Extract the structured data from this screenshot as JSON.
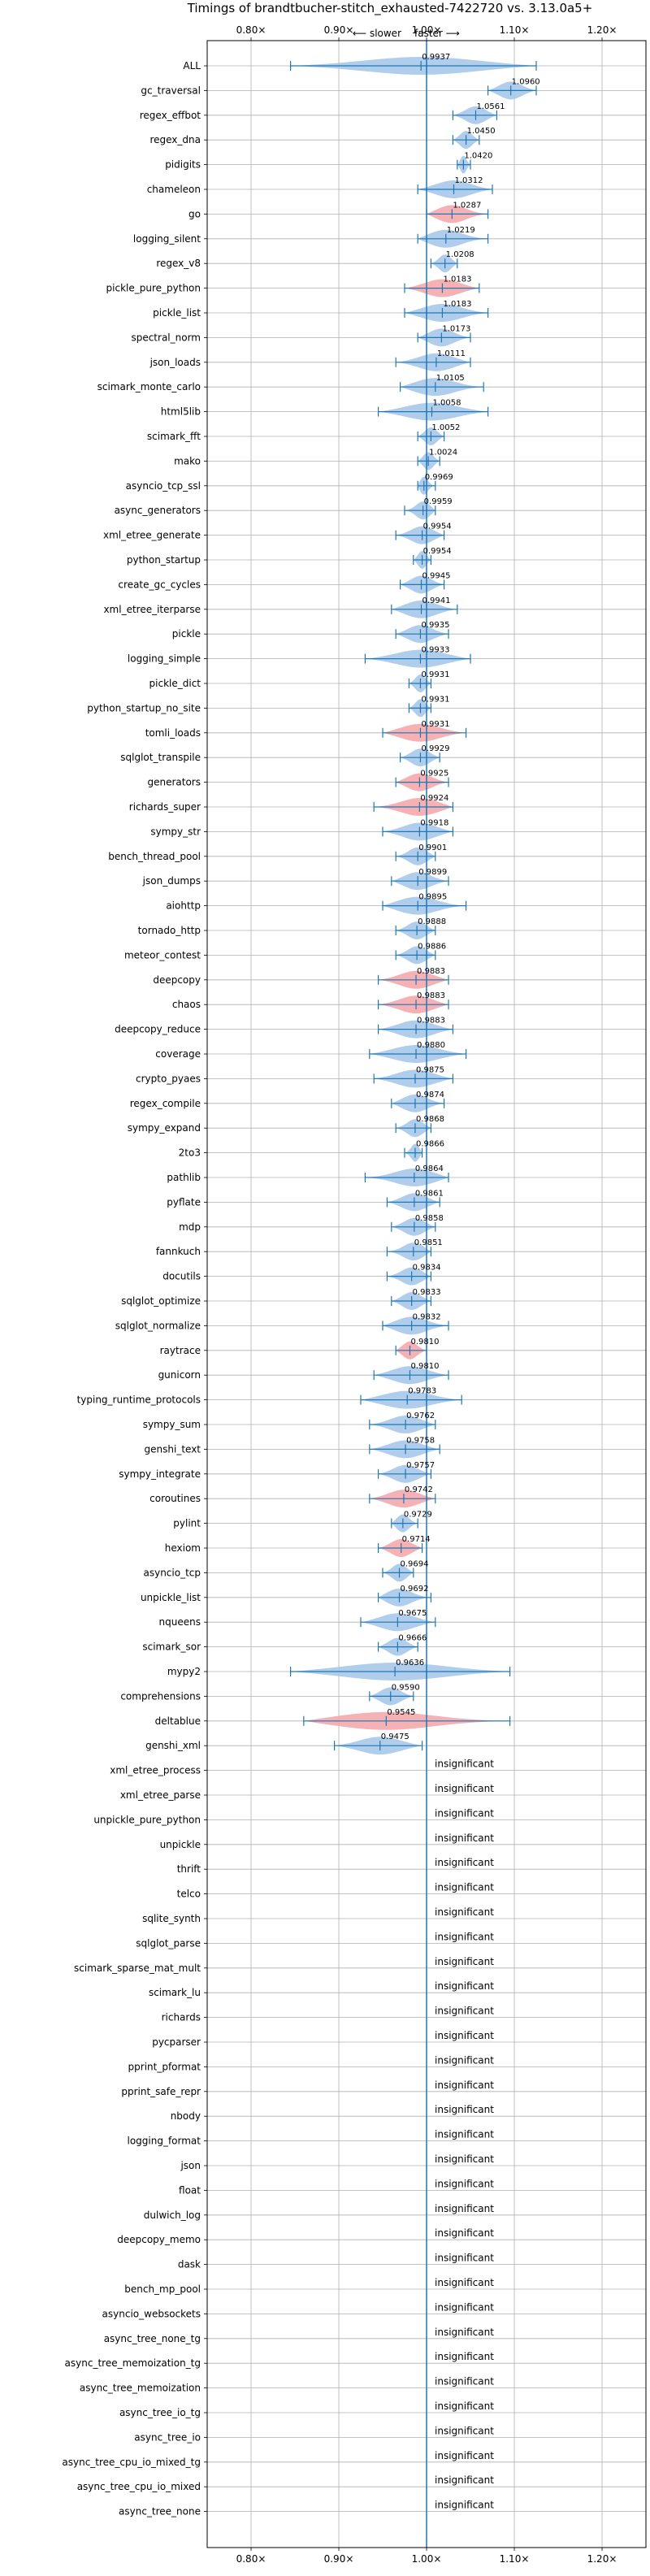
{
  "chart_data": {
    "type": "violin",
    "title": "Timings of brandtbucher-stitch_exhausted-7422720 vs. 3.13.0a5+",
    "direction_labels": {
      "slower": "⟵ slower",
      "faster": "faster ⟶"
    },
    "xlim": [
      0.75,
      1.25
    ],
    "xticks": [
      0.8,
      0.9,
      1.0,
      1.1,
      1.2
    ],
    "xtick_labels": [
      "0.80×",
      "0.90×",
      "1.00×",
      "1.10×",
      "1.20×"
    ],
    "grid": true,
    "colors": {
      "faster": "#a9c8ea",
      "slower": "#f5a9ad",
      "line": "#1f77b4"
    },
    "significant": [
      {
        "name": "ALL",
        "value": "0.9937",
        "mean": 0.9937,
        "min": 0.845,
        "max": 1.125,
        "color": "faster"
      },
      {
        "name": "gc_traversal",
        "value": "1.0960",
        "mean": 1.096,
        "min": 1.07,
        "max": 1.125,
        "color": "faster"
      },
      {
        "name": "regex_effbot",
        "value": "1.0561",
        "mean": 1.056,
        "min": 1.03,
        "max": 1.08,
        "color": "faster"
      },
      {
        "name": "regex_dna",
        "value": "1.0450",
        "mean": 1.045,
        "min": 1.03,
        "max": 1.06,
        "color": "faster"
      },
      {
        "name": "pidigits",
        "value": "1.0420",
        "mean": 1.042,
        "min": 1.035,
        "max": 1.05,
        "color": "faster"
      },
      {
        "name": "chameleon",
        "value": "1.0312",
        "mean": 1.031,
        "min": 0.99,
        "max": 1.075,
        "color": "faster"
      },
      {
        "name": "go",
        "value": "1.0287",
        "mean": 1.029,
        "min": 1.0,
        "max": 1.07,
        "color": "slower"
      },
      {
        "name": "logging_silent",
        "value": "1.0219",
        "mean": 1.022,
        "min": 0.99,
        "max": 1.07,
        "color": "faster"
      },
      {
        "name": "regex_v8",
        "value": "1.0208",
        "mean": 1.021,
        "min": 1.005,
        "max": 1.035,
        "color": "faster"
      },
      {
        "name": "pickle_pure_python",
        "value": "1.0183",
        "mean": 1.018,
        "min": 0.975,
        "max": 1.06,
        "color": "slower"
      },
      {
        "name": "pickle_list",
        "value": "1.0183",
        "mean": 1.018,
        "min": 0.975,
        "max": 1.07,
        "color": "faster"
      },
      {
        "name": "spectral_norm",
        "value": "1.0173",
        "mean": 1.017,
        "min": 0.99,
        "max": 1.05,
        "color": "faster"
      },
      {
        "name": "json_loads",
        "value": "1.0111",
        "mean": 1.011,
        "min": 0.965,
        "max": 1.05,
        "color": "faster"
      },
      {
        "name": "scimark_monte_carlo",
        "value": "1.0105",
        "mean": 1.01,
        "min": 0.97,
        "max": 1.065,
        "color": "faster"
      },
      {
        "name": "html5lib",
        "value": "1.0058",
        "mean": 1.006,
        "min": 0.945,
        "max": 1.07,
        "color": "faster"
      },
      {
        "name": "scimark_fft",
        "value": "1.0052",
        "mean": 1.005,
        "min": 0.99,
        "max": 1.02,
        "color": "faster"
      },
      {
        "name": "mako",
        "value": "1.0024",
        "mean": 1.002,
        "min": 0.99,
        "max": 1.015,
        "color": "faster"
      },
      {
        "name": "asyncio_tcp_ssl",
        "value": "0.9969",
        "mean": 0.997,
        "min": 0.99,
        "max": 1.01,
        "color": "faster"
      },
      {
        "name": "async_generators",
        "value": "0.9959",
        "mean": 0.996,
        "min": 0.975,
        "max": 1.01,
        "color": "faster"
      },
      {
        "name": "xml_etree_generate",
        "value": "0.9954",
        "mean": 0.995,
        "min": 0.965,
        "max": 1.02,
        "color": "faster"
      },
      {
        "name": "python_startup",
        "value": "0.9954",
        "mean": 0.995,
        "min": 0.985,
        "max": 1.005,
        "color": "faster"
      },
      {
        "name": "create_gc_cycles",
        "value": "0.9945",
        "mean": 0.994,
        "min": 0.97,
        "max": 1.02,
        "color": "faster"
      },
      {
        "name": "xml_etree_iterparse",
        "value": "0.9941",
        "mean": 0.994,
        "min": 0.96,
        "max": 1.035,
        "color": "faster"
      },
      {
        "name": "pickle",
        "value": "0.9935",
        "mean": 0.993,
        "min": 0.965,
        "max": 1.025,
        "color": "faster"
      },
      {
        "name": "logging_simple",
        "value": "0.9933",
        "mean": 0.993,
        "min": 0.93,
        "max": 1.05,
        "color": "faster"
      },
      {
        "name": "pickle_dict",
        "value": "0.9931",
        "mean": 0.993,
        "min": 0.98,
        "max": 1.005,
        "color": "faster"
      },
      {
        "name": "python_startup_no_site",
        "value": "0.9931",
        "mean": 0.993,
        "min": 0.98,
        "max": 1.005,
        "color": "faster"
      },
      {
        "name": "tomli_loads",
        "value": "0.9931",
        "mean": 0.993,
        "min": 0.95,
        "max": 1.045,
        "color": "slower"
      },
      {
        "name": "sqlglot_transpile",
        "value": "0.9929",
        "mean": 0.993,
        "min": 0.97,
        "max": 1.015,
        "color": "faster"
      },
      {
        "name": "generators",
        "value": "0.9925",
        "mean": 0.992,
        "min": 0.965,
        "max": 1.025,
        "color": "slower"
      },
      {
        "name": "richards_super",
        "value": "0.9924",
        "mean": 0.992,
        "min": 0.94,
        "max": 1.03,
        "color": "slower"
      },
      {
        "name": "sympy_str",
        "value": "0.9918",
        "mean": 0.992,
        "min": 0.95,
        "max": 1.03,
        "color": "faster"
      },
      {
        "name": "bench_thread_pool",
        "value": "0.9901",
        "mean": 0.99,
        "min": 0.965,
        "max": 1.01,
        "color": "faster"
      },
      {
        "name": "json_dumps",
        "value": "0.9899",
        "mean": 0.99,
        "min": 0.96,
        "max": 1.025,
        "color": "faster"
      },
      {
        "name": "aiohttp",
        "value": "0.9895",
        "mean": 0.99,
        "min": 0.95,
        "max": 1.045,
        "color": "faster"
      },
      {
        "name": "tornado_http",
        "value": "0.9888",
        "mean": 0.989,
        "min": 0.965,
        "max": 1.01,
        "color": "faster"
      },
      {
        "name": "meteor_contest",
        "value": "0.9886",
        "mean": 0.989,
        "min": 0.965,
        "max": 1.01,
        "color": "faster"
      },
      {
        "name": "deepcopy",
        "value": "0.9883",
        "mean": 0.988,
        "min": 0.945,
        "max": 1.025,
        "color": "slower"
      },
      {
        "name": "chaos",
        "value": "0.9883",
        "mean": 0.988,
        "min": 0.945,
        "max": 1.025,
        "color": "slower"
      },
      {
        "name": "deepcopy_reduce",
        "value": "0.9883",
        "mean": 0.988,
        "min": 0.945,
        "max": 1.03,
        "color": "faster"
      },
      {
        "name": "coverage",
        "value": "0.9880",
        "mean": 0.988,
        "min": 0.935,
        "max": 1.045,
        "color": "faster"
      },
      {
        "name": "crypto_pyaes",
        "value": "0.9875",
        "mean": 0.987,
        "min": 0.94,
        "max": 1.03,
        "color": "faster"
      },
      {
        "name": "regex_compile",
        "value": "0.9874",
        "mean": 0.987,
        "min": 0.96,
        "max": 1.02,
        "color": "faster"
      },
      {
        "name": "sympy_expand",
        "value": "0.9868",
        "mean": 0.987,
        "min": 0.965,
        "max": 1.005,
        "color": "faster"
      },
      {
        "name": "2to3",
        "value": "0.9866",
        "mean": 0.987,
        "min": 0.975,
        "max": 0.995,
        "color": "faster"
      },
      {
        "name": "pathlib",
        "value": "0.9864",
        "mean": 0.986,
        "min": 0.93,
        "max": 1.025,
        "color": "faster"
      },
      {
        "name": "pyflate",
        "value": "0.9861",
        "mean": 0.986,
        "min": 0.955,
        "max": 1.015,
        "color": "faster"
      },
      {
        "name": "mdp",
        "value": "0.9858",
        "mean": 0.986,
        "min": 0.96,
        "max": 1.01,
        "color": "faster"
      },
      {
        "name": "fannkuch",
        "value": "0.9851",
        "mean": 0.985,
        "min": 0.955,
        "max": 1.005,
        "color": "faster"
      },
      {
        "name": "docutils",
        "value": "0.9834",
        "mean": 0.983,
        "min": 0.955,
        "max": 1.005,
        "color": "faster"
      },
      {
        "name": "sqlglot_optimize",
        "value": "0.9833",
        "mean": 0.983,
        "min": 0.96,
        "max": 1.005,
        "color": "faster"
      },
      {
        "name": "sqlglot_normalize",
        "value": "0.9832",
        "mean": 0.983,
        "min": 0.95,
        "max": 1.025,
        "color": "faster"
      },
      {
        "name": "raytrace",
        "value": "0.9810",
        "mean": 0.981,
        "min": 0.965,
        "max": 1.0,
        "color": "slower"
      },
      {
        "name": "gunicorn",
        "value": "0.9810",
        "mean": 0.981,
        "min": 0.94,
        "max": 1.025,
        "color": "faster"
      },
      {
        "name": "typing_runtime_protocols",
        "value": "0.9783",
        "mean": 0.978,
        "min": 0.925,
        "max": 1.04,
        "color": "faster"
      },
      {
        "name": "sympy_sum",
        "value": "0.9762",
        "mean": 0.976,
        "min": 0.935,
        "max": 1.01,
        "color": "faster"
      },
      {
        "name": "genshi_text",
        "value": "0.9758",
        "mean": 0.976,
        "min": 0.935,
        "max": 1.015,
        "color": "faster"
      },
      {
        "name": "sympy_integrate",
        "value": "0.9757",
        "mean": 0.976,
        "min": 0.945,
        "max": 1.005,
        "color": "faster"
      },
      {
        "name": "coroutines",
        "value": "0.9742",
        "mean": 0.974,
        "min": 0.935,
        "max": 1.01,
        "color": "slower"
      },
      {
        "name": "pylint",
        "value": "0.9729",
        "mean": 0.973,
        "min": 0.96,
        "max": 0.99,
        "color": "faster"
      },
      {
        "name": "hexiom",
        "value": "0.9714",
        "mean": 0.971,
        "min": 0.945,
        "max": 0.995,
        "color": "slower"
      },
      {
        "name": "asyncio_tcp",
        "value": "0.9694",
        "mean": 0.969,
        "min": 0.95,
        "max": 0.985,
        "color": "faster"
      },
      {
        "name": "unpickle_list",
        "value": "0.9692",
        "mean": 0.969,
        "min": 0.945,
        "max": 1.005,
        "color": "faster"
      },
      {
        "name": "nqueens",
        "value": "0.9675",
        "mean": 0.967,
        "min": 0.925,
        "max": 1.01,
        "color": "faster"
      },
      {
        "name": "scimark_sor",
        "value": "0.9666",
        "mean": 0.967,
        "min": 0.945,
        "max": 0.99,
        "color": "faster"
      },
      {
        "name": "mypy2",
        "value": "0.9636",
        "mean": 0.964,
        "min": 0.845,
        "max": 1.095,
        "color": "faster"
      },
      {
        "name": "comprehensions",
        "value": "0.9590",
        "mean": 0.959,
        "min": 0.935,
        "max": 0.985,
        "color": "faster"
      },
      {
        "name": "deltablue",
        "value": "0.9545",
        "mean": 0.954,
        "min": 0.86,
        "max": 1.095,
        "color": "slower"
      },
      {
        "name": "genshi_xml",
        "value": "0.9475",
        "mean": 0.947,
        "min": 0.895,
        "max": 0.995,
        "color": "faster"
      }
    ],
    "insignificant_label": "insignificant",
    "insignificant": [
      "xml_etree_process",
      "xml_etree_parse",
      "unpickle_pure_python",
      "unpickle",
      "thrift",
      "telco",
      "sqlite_synth",
      "sqlglot_parse",
      "scimark_sparse_mat_mult",
      "scimark_lu",
      "richards",
      "pycparser",
      "pprint_pformat",
      "pprint_safe_repr",
      "nbody",
      "logging_format",
      "json",
      "float",
      "dulwich_log",
      "deepcopy_memo",
      "dask",
      "bench_mp_pool",
      "asyncio_websockets",
      "async_tree_none_tg",
      "async_tree_memoization_tg",
      "async_tree_memoization",
      "async_tree_io_tg",
      "async_tree_io",
      "async_tree_cpu_io_mixed_tg",
      "async_tree_cpu_io_mixed",
      "async_tree_none"
    ]
  }
}
